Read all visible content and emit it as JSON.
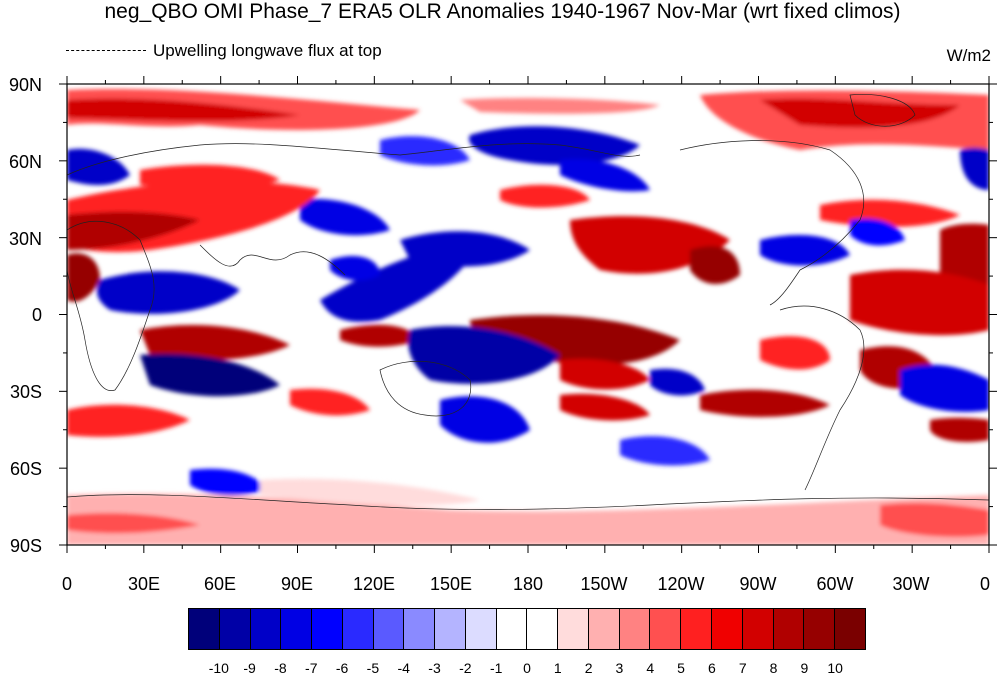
{
  "title": "neg_QBO OMI Phase_7 ERA5 OLR Anomalies 1940-1967 Nov-Mar (wrt fixed climos)",
  "legend_label": "Upwelling longwave flux at top",
  "units": "W/m2",
  "x_ticks": [
    "0",
    "30E",
    "60E",
    "90E",
    "120E",
    "150E",
    "180",
    "150W",
    "120W",
    "90W",
    "60W",
    "30W",
    "0"
  ],
  "y_ticks": [
    "90N",
    "60N",
    "30N",
    "0",
    "30S",
    "60S",
    "90S"
  ],
  "colorbar": {
    "labels": [
      "-10",
      "-9",
      "-8",
      "-7",
      "-6",
      "-5",
      "-4",
      "-3",
      "-2",
      "-1",
      "0",
      "1",
      "2",
      "3",
      "4",
      "5",
      "6",
      "7",
      "8",
      "9",
      "10"
    ],
    "colors": [
      "#00007a",
      "#0000a6",
      "#0000c8",
      "#0000e4",
      "#0000ff",
      "#2a2aff",
      "#5a5aff",
      "#8a8aff",
      "#b4b4ff",
      "#dcdcff",
      "#ffffff",
      "#ffffff",
      "#ffdcdc",
      "#ffb0b0",
      "#ff8282",
      "#ff5050",
      "#ff2020",
      "#f00000",
      "#d20000",
      "#b00000",
      "#960000",
      "#7a0000"
    ]
  },
  "map": {
    "projection": "cylindrical-equidistant",
    "lon_range": [
      0,
      360
    ],
    "lat_range": [
      -90,
      90
    ]
  }
}
